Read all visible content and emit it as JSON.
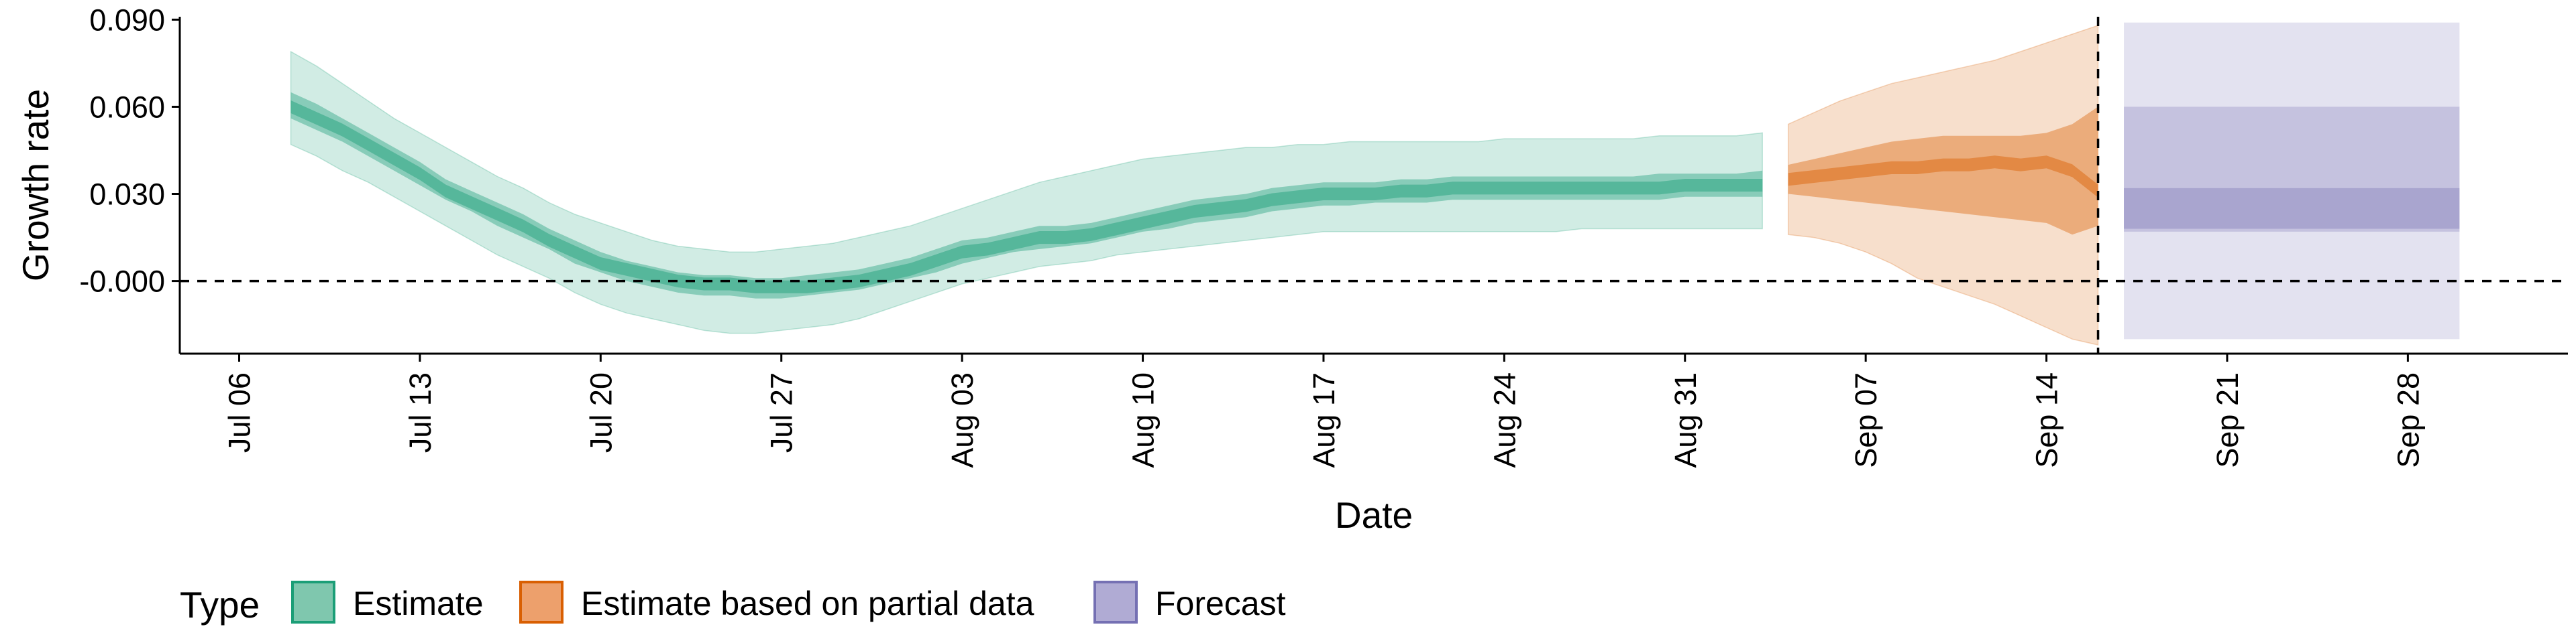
{
  "chart_data": {
    "type": "area",
    "xlabel": "Date",
    "ylabel": "Growth rate",
    "x_ticks": [
      "Jul 06",
      "Jul 13",
      "Jul 20",
      "Jul 27",
      "Aug 03",
      "Aug 10",
      "Aug 17",
      "Aug 24",
      "Aug 31",
      "Sep 07",
      "Sep 14",
      "Sep 21",
      "Sep 28"
    ],
    "y_ticks": [
      "-0.000",
      "0.030",
      "0.060",
      "0.090"
    ],
    "ylim": [
      -0.025,
      0.091
    ],
    "xlim_days": [
      -2.3,
      90.2
    ],
    "reference_lines": {
      "horizontal_y": 0.0,
      "vertical_date": "Sep 16"
    },
    "grid": false,
    "legend": {
      "title": "Type",
      "position": "bottom-left",
      "entries": [
        {
          "label": "Estimate",
          "fill": "#7fc7ae",
          "stroke": "#1b9e77"
        },
        {
          "label": "Estimate based on partial data",
          "fill": "#eda06c",
          "stroke": "#d95f02"
        },
        {
          "label": "Forecast",
          "fill": "#b0abd4",
          "stroke": "#7570b3"
        }
      ]
    },
    "series": [
      {
        "name": "Estimate",
        "color": "#1b9e77",
        "dates": [
          "Jul 08",
          "Jul 09",
          "Jul 10",
          "Jul 11",
          "Jul 12",
          "Jul 13",
          "Jul 14",
          "Jul 15",
          "Jul 16",
          "Jul 17",
          "Jul 18",
          "Jul 19",
          "Jul 20",
          "Jul 21",
          "Jul 22",
          "Jul 23",
          "Jul 24",
          "Jul 25",
          "Jul 26",
          "Jul 27",
          "Jul 28",
          "Jul 29",
          "Jul 30",
          "Jul 31",
          "Aug 01",
          "Aug 02",
          "Aug 03",
          "Aug 04",
          "Aug 05",
          "Aug 06",
          "Aug 07",
          "Aug 08",
          "Aug 09",
          "Aug 10",
          "Aug 11",
          "Aug 12",
          "Aug 13",
          "Aug 14",
          "Aug 15",
          "Aug 16",
          "Aug 17",
          "Aug 18",
          "Aug 19",
          "Aug 20",
          "Aug 21",
          "Aug 22",
          "Aug 23",
          "Aug 24",
          "Aug 25",
          "Aug 26",
          "Aug 27",
          "Aug 28",
          "Aug 29",
          "Aug 30",
          "Aug 31",
          "Sep 01",
          "Sep 02",
          "Sep 03"
        ],
        "median": [
          0.06,
          0.056,
          0.052,
          0.047,
          0.042,
          0.037,
          0.031,
          0.027,
          0.023,
          0.019,
          0.014,
          0.01,
          0.006,
          0.004,
          0.002,
          0.0,
          -0.001,
          -0.001,
          -0.002,
          -0.002,
          -0.002,
          -0.001,
          0.0,
          0.002,
          0.004,
          0.007,
          0.01,
          0.011,
          0.013,
          0.015,
          0.015,
          0.016,
          0.018,
          0.02,
          0.022,
          0.024,
          0.025,
          0.026,
          0.028,
          0.029,
          0.03,
          0.03,
          0.03,
          0.031,
          0.031,
          0.032,
          0.032,
          0.032,
          0.032,
          0.032,
          0.032,
          0.032,
          0.032,
          0.032,
          0.033,
          0.033,
          0.033,
          0.033
        ],
        "lower_50": [
          0.056,
          0.052,
          0.048,
          0.043,
          0.038,
          0.033,
          0.028,
          0.024,
          0.019,
          0.015,
          0.011,
          0.006,
          0.003,
          0.0,
          -0.002,
          -0.004,
          -0.005,
          -0.005,
          -0.006,
          -0.006,
          -0.005,
          -0.004,
          -0.003,
          -0.001,
          0.001,
          0.003,
          0.006,
          0.008,
          0.01,
          0.011,
          0.012,
          0.013,
          0.015,
          0.017,
          0.018,
          0.02,
          0.021,
          0.022,
          0.024,
          0.025,
          0.026,
          0.026,
          0.027,
          0.027,
          0.027,
          0.028,
          0.028,
          0.028,
          0.028,
          0.028,
          0.028,
          0.028,
          0.028,
          0.028,
          0.029,
          0.029,
          0.029,
          0.029
        ],
        "upper_50": [
          0.065,
          0.061,
          0.056,
          0.051,
          0.046,
          0.041,
          0.035,
          0.031,
          0.027,
          0.023,
          0.018,
          0.014,
          0.01,
          0.007,
          0.005,
          0.003,
          0.002,
          0.002,
          0.001,
          0.001,
          0.002,
          0.003,
          0.004,
          0.006,
          0.008,
          0.011,
          0.014,
          0.015,
          0.017,
          0.019,
          0.019,
          0.02,
          0.022,
          0.024,
          0.026,
          0.028,
          0.029,
          0.03,
          0.032,
          0.033,
          0.034,
          0.034,
          0.034,
          0.035,
          0.035,
          0.036,
          0.036,
          0.036,
          0.036,
          0.036,
          0.036,
          0.036,
          0.036,
          0.037,
          0.037,
          0.037,
          0.037,
          0.038
        ],
        "lower_90": [
          0.047,
          0.043,
          0.038,
          0.034,
          0.029,
          0.024,
          0.019,
          0.014,
          0.009,
          0.005,
          0.001,
          -0.004,
          -0.008,
          -0.011,
          -0.013,
          -0.015,
          -0.017,
          -0.018,
          -0.018,
          -0.017,
          -0.016,
          -0.015,
          -0.013,
          -0.01,
          -0.007,
          -0.004,
          -0.001,
          0.001,
          0.003,
          0.005,
          0.006,
          0.007,
          0.009,
          0.01,
          0.011,
          0.012,
          0.013,
          0.014,
          0.015,
          0.016,
          0.017,
          0.017,
          0.017,
          0.017,
          0.017,
          0.017,
          0.017,
          0.017,
          0.017,
          0.017,
          0.018,
          0.018,
          0.018,
          0.018,
          0.018,
          0.018,
          0.018,
          0.018
        ],
        "upper_90": [
          0.079,
          0.074,
          0.068,
          0.062,
          0.056,
          0.051,
          0.046,
          0.041,
          0.036,
          0.032,
          0.027,
          0.023,
          0.02,
          0.017,
          0.014,
          0.012,
          0.011,
          0.01,
          0.01,
          0.011,
          0.012,
          0.013,
          0.015,
          0.017,
          0.019,
          0.022,
          0.025,
          0.028,
          0.031,
          0.034,
          0.036,
          0.038,
          0.04,
          0.042,
          0.043,
          0.044,
          0.045,
          0.046,
          0.046,
          0.047,
          0.047,
          0.048,
          0.048,
          0.048,
          0.048,
          0.048,
          0.048,
          0.049,
          0.049,
          0.049,
          0.049,
          0.049,
          0.049,
          0.05,
          0.05,
          0.05,
          0.05,
          0.051
        ]
      },
      {
        "name": "Estimate based on partial data",
        "color": "#d95f02",
        "dates": [
          "Sep 04",
          "Sep 05",
          "Sep 06",
          "Sep 07",
          "Sep 08",
          "Sep 09",
          "Sep 10",
          "Sep 11",
          "Sep 12",
          "Sep 13",
          "Sep 14",
          "Sep 15",
          "Sep 16"
        ],
        "median": [
          0.035,
          0.036,
          0.037,
          0.038,
          0.039,
          0.039,
          0.04,
          0.04,
          0.041,
          0.04,
          0.041,
          0.038,
          0.031
        ],
        "lower_50": [
          0.03,
          0.029,
          0.028,
          0.027,
          0.026,
          0.025,
          0.024,
          0.023,
          0.022,
          0.021,
          0.02,
          0.016,
          0.019
        ],
        "upper_50": [
          0.04,
          0.042,
          0.044,
          0.046,
          0.048,
          0.049,
          0.05,
          0.05,
          0.05,
          0.05,
          0.051,
          0.054,
          0.06
        ],
        "lower_90": [
          0.016,
          0.015,
          0.013,
          0.01,
          0.006,
          0.001,
          -0.002,
          -0.005,
          -0.008,
          -0.012,
          -0.016,
          -0.02,
          -0.022
        ],
        "upper_90": [
          0.054,
          0.058,
          0.062,
          0.065,
          0.068,
          0.07,
          0.072,
          0.074,
          0.076,
          0.079,
          0.082,
          0.085,
          0.088
        ]
      },
      {
        "name": "Forecast",
        "color": "#7570b3",
        "dates": [
          "Sep 17",
          "Sep 30"
        ],
        "median": [
          0.025,
          0.025
        ],
        "lower_20": [
          0.018,
          0.018
        ],
        "upper_20": [
          0.032,
          0.032
        ],
        "lower_50": [
          0.017,
          0.017
        ],
        "upper_50": [
          0.06,
          0.06
        ],
        "lower_90": [
          -0.02,
          -0.02
        ],
        "upper_90": [
          0.089,
          0.089
        ]
      }
    ]
  }
}
